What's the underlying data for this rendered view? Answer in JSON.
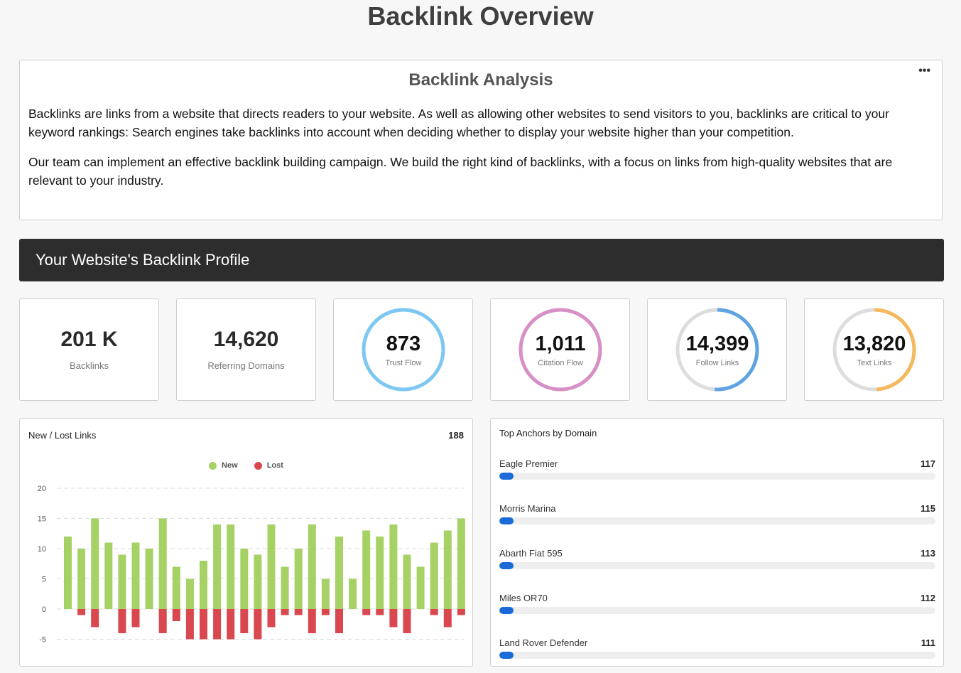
{
  "page": {
    "title": "Backlink Overview"
  },
  "analysis": {
    "title": "Backlink Analysis",
    "menu_icon": "ellipsis-icon",
    "menu_label": "•••",
    "paragraphs": [
      "Backlinks are links from a website that directs readers to your website. As well as allowing other websites to send visitors to you, backlinks are critical to your keyword rankings: Search engines take backlinks into account when deciding whether to display your website higher than your competition.",
      "Our team can implement an effective backlink building campaign. We build the right kind of backlinks, with a focus on links from high-quality websites that are relevant to your industry."
    ]
  },
  "profile": {
    "heading": "Your Website's Backlink Profile"
  },
  "stats": [
    {
      "value": "201 K",
      "label": "Backlinks",
      "ring": false
    },
    {
      "value": "14,620",
      "label": "Referring Domains",
      "ring": false
    },
    {
      "value": "873",
      "label": "Trust Flow",
      "ring": true,
      "color": "#7cc8f2",
      "fraction": 1.0
    },
    {
      "value": "1,011",
      "label": "Citation Flow",
      "ring": true,
      "color": "#d78fc6",
      "fraction": 1.0
    },
    {
      "value": "14,399",
      "label": "Follow Links",
      "ring": true,
      "color": "#5fa3e0",
      "fraction": 0.51
    },
    {
      "value": "13,820",
      "label": "Text Links",
      "ring": true,
      "color": "#f6b85c",
      "fraction": 0.49
    }
  ],
  "new_lost": {
    "title": "New / Lost Links",
    "total": "188",
    "legend": {
      "new": "New",
      "lost": "Lost"
    },
    "colors": {
      "new": "#a6d165",
      "lost": "#d9474f",
      "ring_track": "#dddddd"
    }
  },
  "chart_data": {
    "type": "bar",
    "title": "New / Lost Links",
    "ylim": [
      -5,
      20
    ],
    "yticks": [
      "20",
      "15",
      "10",
      "5",
      "0",
      "-5"
    ],
    "series": [
      {
        "name": "New",
        "values": [
          12,
          10,
          15,
          11,
          9,
          11,
          10,
          15,
          7,
          5,
          8,
          14,
          14,
          10,
          9,
          14,
          7,
          10,
          14,
          5,
          12,
          5,
          13,
          12,
          14,
          9,
          7,
          11,
          13,
          15
        ]
      },
      {
        "name": "Lost",
        "values": [
          0,
          -1,
          -3,
          0,
          -4,
          -3,
          0,
          -4,
          -2,
          -5,
          -5,
          -5,
          -5,
          -4,
          -5,
          -3,
          -1,
          -1,
          -4,
          -1,
          -4,
          0,
          -1,
          -1,
          -3,
          -4,
          0,
          -1,
          -3,
          -1
        ]
      }
    ]
  },
  "anchors": {
    "title": "Top Anchors by Domain",
    "items": [
      {
        "name": "Eagle Premier",
        "count": "117",
        "fraction": 0.033
      },
      {
        "name": "Morris Marina",
        "count": "115",
        "fraction": 0.033
      },
      {
        "name": "Abarth Fiat 595",
        "count": "113",
        "fraction": 0.032
      },
      {
        "name": "Miles OR70",
        "count": "112",
        "fraction": 0.032
      },
      {
        "name": "Land Rover Defender",
        "count": "111",
        "fraction": 0.032
      }
    ]
  }
}
